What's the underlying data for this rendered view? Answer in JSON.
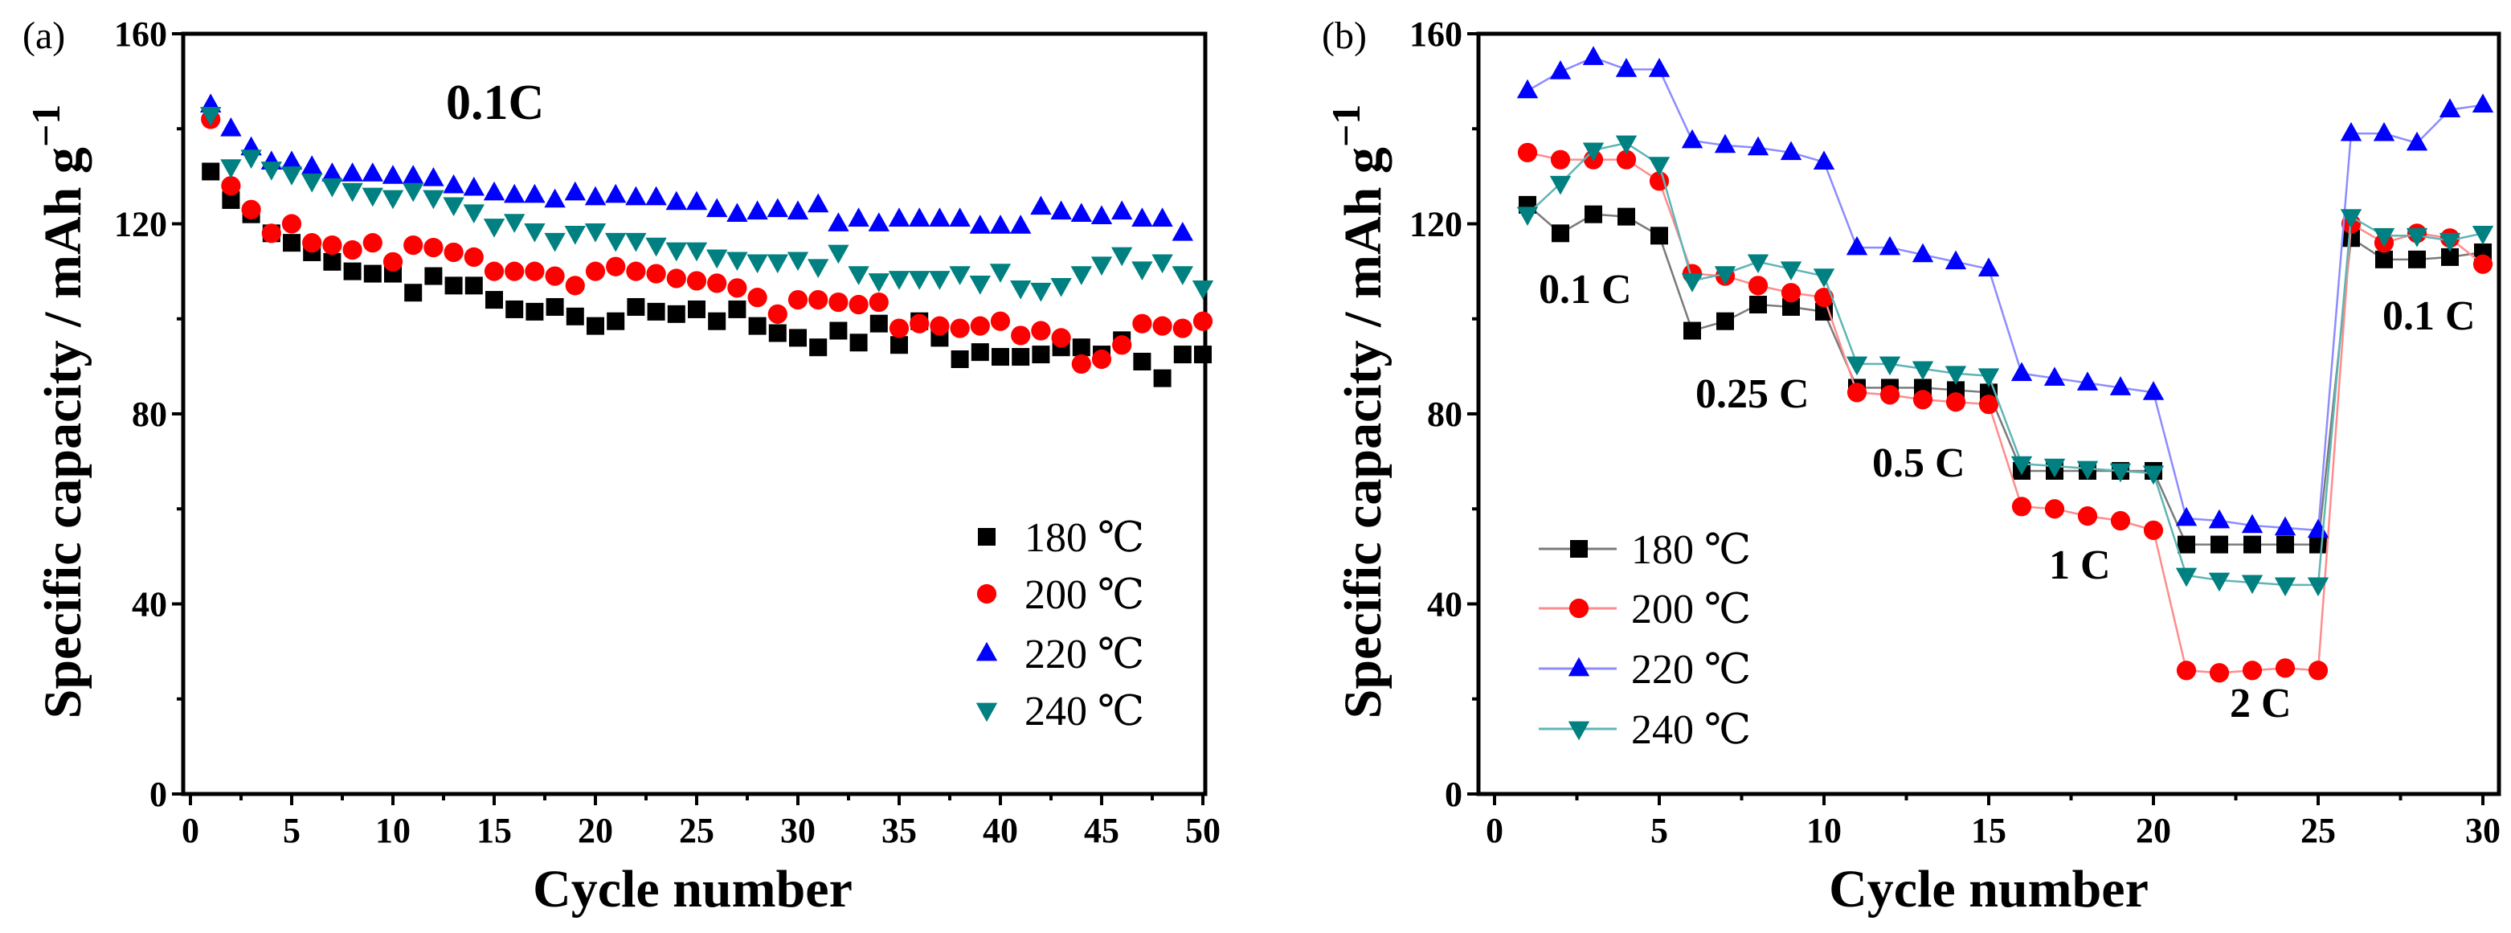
{
  "colors": {
    "s180": "#000000",
    "s200": "#ff0000",
    "s220": "#0000ff",
    "s240": "#008080",
    "l180": "#7a7a7a",
    "l200": "#ff8c8c",
    "l220": "#8c8cff",
    "l240": "#5fb5b5"
  },
  "chart_data": [
    {
      "panel_label": "(a)",
      "type": "scatter",
      "title": "0.1C",
      "xlabel": "Cycle number",
      "ylabel": "Specific capacity / mAh g",
      "ylabel_sup": "−1",
      "xlim": [
        0,
        50
      ],
      "ylim": [
        0,
        160
      ],
      "xticks": [
        0,
        5,
        10,
        15,
        20,
        25,
        30,
        35,
        40,
        45,
        50
      ],
      "yticks": [
        0,
        40,
        80,
        120,
        160
      ],
      "legend_position": "bottom-right",
      "connected": false,
      "x": [
        1,
        2,
        3,
        4,
        5,
        6,
        7,
        8,
        9,
        10,
        11,
        12,
        13,
        14,
        15,
        16,
        17,
        18,
        19,
        20,
        21,
        22,
        23,
        24,
        25,
        26,
        27,
        28,
        29,
        30,
        31,
        32,
        33,
        34,
        35,
        36,
        37,
        38,
        39,
        40,
        41,
        42,
        43,
        44,
        45,
        46,
        47,
        48,
        49,
        50
      ],
      "series": [
        {
          "name": "180 ℃",
          "marker": "square",
          "color_key": "s180",
          "values": [
            131,
            125,
            122,
            118,
            116,
            114,
            112,
            110,
            109.5,
            109.5,
            105.5,
            109,
            107,
            107,
            104,
            102,
            101.5,
            102.5,
            100.5,
            98.5,
            99.5,
            102.5,
            101.5,
            101,
            102,
            99.5,
            102,
            98.5,
            97,
            96,
            94,
            97.5,
            95,
            99,
            94.5,
            99.5,
            96,
            91.5,
            93,
            92,
            92,
            92.5,
            94,
            94,
            92.5,
            95.5,
            91,
            87.5,
            92.5,
            92.5
          ]
        },
        {
          "name": "200 ℃",
          "marker": "circle",
          "color_key": "s200",
          "values": [
            142,
            128,
            123,
            118,
            120,
            116,
            115.5,
            114.5,
            116,
            112,
            115.5,
            115,
            114,
            113,
            110,
            110,
            110,
            109,
            107,
            110,
            111,
            110,
            109.5,
            108.5,
            108,
            107.5,
            106.5,
            104.5,
            101,
            104,
            104,
            103.5,
            103,
            103.5,
            98,
            99,
            98.5,
            98,
            98.5,
            99.5,
            96.5,
            97.5,
            96,
            90.5,
            91.5,
            94.5,
            99,
            98.5,
            98,
            99.5
          ]
        },
        {
          "name": "220 ℃",
          "marker": "triangle-up",
          "color_key": "s220",
          "values": [
            145,
            140,
            136,
            133,
            133,
            132,
            130.5,
            130.5,
            130.5,
            130,
            130,
            129.5,
            128,
            127.5,
            126.5,
            126,
            126,
            125,
            126.5,
            125.5,
            126,
            125.5,
            125.5,
            124.5,
            124.5,
            123,
            122,
            122.5,
            123,
            122.5,
            124,
            120,
            121,
            120,
            121,
            121,
            121,
            121,
            119.5,
            119.5,
            119.5,
            123.5,
            122.5,
            122,
            121.5,
            122.5,
            121,
            121,
            118,
            null
          ]
        },
        {
          "name": "240 ℃",
          "marker": "triangle-down",
          "color_key": "s240",
          "values": [
            143,
            132,
            134,
            131.5,
            130.5,
            129,
            128,
            127,
            126,
            125.5,
            127,
            125.5,
            124,
            122.5,
            119.5,
            120.5,
            118.5,
            116.5,
            118,
            118.5,
            116.5,
            116.5,
            115.5,
            114.5,
            114.5,
            113,
            112.5,
            112,
            112,
            112.5,
            111,
            114,
            109.5,
            108,
            108.5,
            108.5,
            108.5,
            109.5,
            107.5,
            110,
            106.5,
            106,
            107,
            109.5,
            111.5,
            113.5,
            110.5,
            112,
            109.5,
            106.5
          ]
        }
      ],
      "annotations": []
    },
    {
      "panel_label": "(b)",
      "type": "line",
      "title": "",
      "xlabel": "Cycle number",
      "ylabel": "Specific capacity / mAh g",
      "ylabel_sup": "−1",
      "xlim": [
        0,
        30
      ],
      "ylim": [
        0,
        160
      ],
      "xticks": [
        0,
        5,
        10,
        15,
        20,
        25,
        30
      ],
      "yticks": [
        0,
        40,
        80,
        120,
        160
      ],
      "legend_position": "bottom-left",
      "connected": true,
      "x": [
        1,
        2,
        3,
        4,
        5,
        6,
        7,
        8,
        9,
        10,
        11,
        12,
        13,
        14,
        15,
        16,
        17,
        18,
        19,
        20,
        21,
        22,
        23,
        24,
        25,
        26,
        27,
        28,
        29,
        30
      ],
      "series": [
        {
          "name": "180 ℃",
          "marker": "square",
          "color_key": "s180",
          "line_key": "l180",
          "values": [
            124,
            118,
            122,
            121.5,
            117.5,
            97.5,
            99.5,
            103,
            102.5,
            101.5,
            85.5,
            85.5,
            85.5,
            85,
            84.5,
            68,
            68,
            68,
            68,
            68,
            52.5,
            52.5,
            52.5,
            52.5,
            52.5,
            117,
            112.5,
            112.5,
            113,
            114
          ]
        },
        {
          "name": "200 ℃",
          "marker": "circle",
          "color_key": "s200",
          "line_key": "l200",
          "values": [
            135,
            133.5,
            133.5,
            133.5,
            129,
            109.5,
            109,
            107,
            105.5,
            104.5,
            84.5,
            84,
            83,
            82.5,
            82,
            60.5,
            60,
            58.5,
            57.5,
            55.5,
            26,
            25.5,
            26,
            26.5,
            26,
            120,
            116,
            118,
            117,
            111.5
          ]
        },
        {
          "name": "220 ℃",
          "marker": "triangle-up",
          "color_key": "s220",
          "line_key": "l220",
          "values": [
            148,
            152,
            155,
            152.5,
            152.5,
            137.5,
            136.5,
            136,
            135,
            133,
            115,
            115,
            113.5,
            112,
            110.5,
            88.5,
            87.5,
            86.5,
            85.5,
            84.5,
            58,
            57.5,
            56.5,
            56,
            55.5,
            139,
            139,
            137,
            144,
            145
          ]
        },
        {
          "name": "240 ℃",
          "marker": "triangle-down",
          "color_key": "s240",
          "line_key": "l240",
          "values": [
            122,
            128.5,
            135.5,
            137,
            132.5,
            108,
            109.5,
            112,
            110.5,
            109,
            90.5,
            90.5,
            89.5,
            88.5,
            88,
            69.5,
            69,
            68.5,
            68,
            67.5,
            46,
            45,
            44.5,
            44,
            44,
            121.5,
            117.5,
            117.5,
            116.5,
            118
          ]
        }
      ],
      "annotations": [
        {
          "text": "0.1 C",
          "at_cycle": 3
        },
        {
          "text": "0.25 C",
          "at_cycle": 8
        },
        {
          "text": "0.5 C",
          "at_cycle": 13
        },
        {
          "text": "1 C",
          "at_cycle": 18
        },
        {
          "text": "2 C",
          "at_cycle": 23
        },
        {
          "text": "0.1 C",
          "at_cycle": 28
        }
      ]
    }
  ]
}
